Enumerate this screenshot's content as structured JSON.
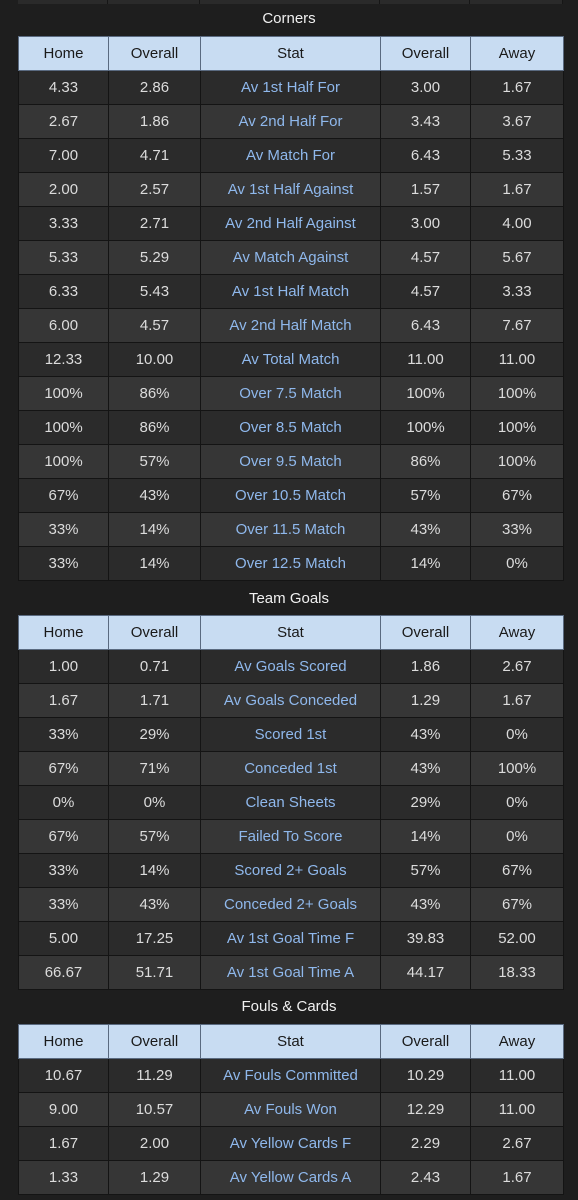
{
  "columns": [
    "Home",
    "Overall",
    "Stat",
    "Overall",
    "Away"
  ],
  "sections": [
    {
      "title": "Corners",
      "rows": [
        [
          "4.33",
          "2.86",
          "Av 1st Half For",
          "3.00",
          "1.67"
        ],
        [
          "2.67",
          "1.86",
          "Av 2nd Half For",
          "3.43",
          "3.67"
        ],
        [
          "7.00",
          "4.71",
          "Av Match For",
          "6.43",
          "5.33"
        ],
        [
          "2.00",
          "2.57",
          "Av 1st Half Against",
          "1.57",
          "1.67"
        ],
        [
          "3.33",
          "2.71",
          "Av 2nd Half Against",
          "3.00",
          "4.00"
        ],
        [
          "5.33",
          "5.29",
          "Av Match Against",
          "4.57",
          "5.67"
        ],
        [
          "6.33",
          "5.43",
          "Av 1st Half Match",
          "4.57",
          "3.33"
        ],
        [
          "6.00",
          "4.57",
          "Av 2nd Half Match",
          "6.43",
          "7.67"
        ],
        [
          "12.33",
          "10.00",
          "Av Total Match",
          "11.00",
          "11.00"
        ],
        [
          "100%",
          "86%",
          "Over 7.5 Match",
          "100%",
          "100%"
        ],
        [
          "100%",
          "86%",
          "Over 8.5 Match",
          "100%",
          "100%"
        ],
        [
          "100%",
          "57%",
          "Over 9.5 Match",
          "86%",
          "100%"
        ],
        [
          "67%",
          "43%",
          "Over 10.5 Match",
          "57%",
          "67%"
        ],
        [
          "33%",
          "14%",
          "Over 11.5 Match",
          "43%",
          "33%"
        ],
        [
          "33%",
          "14%",
          "Over 12.5 Match",
          "14%",
          "0%"
        ]
      ]
    },
    {
      "title": "Team Goals",
      "rows": [
        [
          "1.00",
          "0.71",
          "Av Goals Scored",
          "1.86",
          "2.67"
        ],
        [
          "1.67",
          "1.71",
          "Av Goals Conceded",
          "1.29",
          "1.67"
        ],
        [
          "33%",
          "29%",
          "Scored 1st",
          "43%",
          "0%"
        ],
        [
          "67%",
          "71%",
          "Conceded 1st",
          "43%",
          "100%"
        ],
        [
          "0%",
          "0%",
          "Clean Sheets",
          "29%",
          "0%"
        ],
        [
          "67%",
          "57%",
          "Failed To Score",
          "14%",
          "0%"
        ],
        [
          "33%",
          "14%",
          "Scored 2+ Goals",
          "57%",
          "67%"
        ],
        [
          "33%",
          "43%",
          "Conceded 2+ Goals",
          "43%",
          "67%"
        ],
        [
          "5.00",
          "17.25",
          "Av 1st Goal Time F",
          "39.83",
          "52.00"
        ],
        [
          "66.67",
          "51.71",
          "Av 1st Goal Time A",
          "44.17",
          "18.33"
        ]
      ]
    },
    {
      "title": "Fouls & Cards",
      "rows": [
        [
          "10.67",
          "11.29",
          "Av Fouls Committed",
          "10.29",
          "11.00"
        ],
        [
          "9.00",
          "10.57",
          "Av Fouls Won",
          "12.29",
          "11.00"
        ],
        [
          "1.67",
          "2.00",
          "Av Yellow Cards F",
          "2.29",
          "2.67"
        ],
        [
          "1.33",
          "1.29",
          "Av Yellow Cards A",
          "2.43",
          "1.67"
        ]
      ]
    }
  ]
}
